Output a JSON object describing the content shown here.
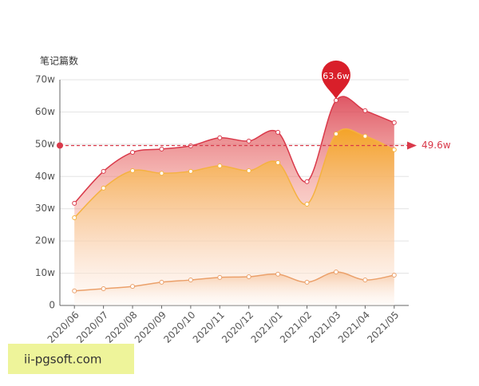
{
  "chart_data": {
    "type": "line",
    "y_axis_title": "笔记篇数",
    "categories": [
      "2020/06",
      "2020/07",
      "2020/08",
      "2020/09",
      "2020/10",
      "2020/11",
      "2020/12",
      "2021/01",
      "2021/02",
      "2021/03",
      "2021/04",
      "2021/05"
    ],
    "series": [
      {
        "color": "#d9394a",
        "values": [
          31.7,
          41.6,
          47.5,
          48.5,
          49.5,
          52,
          51,
          53.7,
          38.4,
          63.6,
          60.4,
          56.7
        ]
      },
      {
        "color": "#f5b240",
        "values": [
          27.2,
          36.4,
          41.8,
          41,
          41.6,
          43.3,
          41.8,
          44.3,
          31.4,
          53.2,
          52.5,
          48.3
        ]
      },
      {
        "color": "#eba06a",
        "values": [
          4.5,
          5.2,
          5.9,
          7.2,
          7.9,
          8.7,
          8.9,
          9.7,
          7.2,
          10.4,
          7.9,
          9.4
        ]
      }
    ],
    "ylim": [
      0,
      70
    ],
    "yticks": [
      0,
      {
        "value": 10,
        "label": "10w"
      },
      {
        "value": 20,
        "label": "20w"
      },
      {
        "value": 30,
        "label": "30w"
      },
      {
        "value": 40,
        "label": "40w"
      },
      {
        "value": 50,
        "label": "50w"
      },
      {
        "value": 60,
        "label": "60w"
      },
      {
        "value": 70,
        "label": "70w"
      }
    ],
    "grid": true,
    "mark_point": {
      "value": 63.6,
      "label": "63.6w"
    },
    "mark_line": {
      "value": 49.6,
      "label": "49.6w"
    }
  },
  "watermark": "ii-pgsoft.com"
}
